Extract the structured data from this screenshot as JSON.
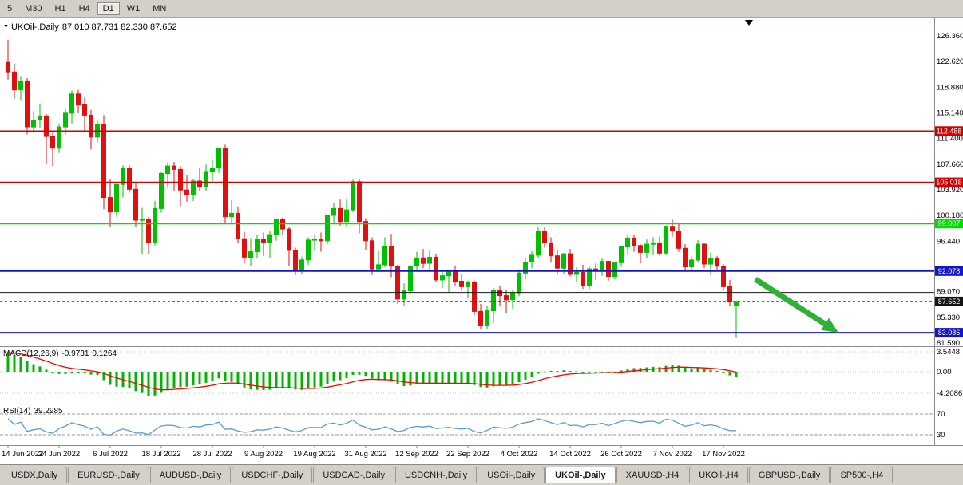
{
  "toolbar": {
    "periods": [
      {
        "label": "5",
        "active": false
      },
      {
        "label": "M30",
        "active": false
      },
      {
        "label": "H1",
        "active": false
      },
      {
        "label": "H4",
        "active": false
      },
      {
        "label": "D1",
        "active": true
      },
      {
        "label": "W1",
        "active": false
      },
      {
        "label": "MN",
        "active": false
      }
    ]
  },
  "chart": {
    "symbol_title": "UKOil-,Daily",
    "ohlc_text": "87.010 87.731 82.330 87.652",
    "price_axis_labels": [
      "126.360",
      "122.620",
      "118.880",
      "115.140",
      "111.400",
      "107.660",
      "103.920",
      "100.180",
      "96.440",
      "89.070",
      "85.330",
      "81.590"
    ],
    "hlines": [
      {
        "price": 112.488,
        "color": "#d20000",
        "label": "112.488",
        "width": 1.6
      },
      {
        "price": 105.015,
        "color": "#d20000",
        "label": "105.015",
        "width": 1.6
      },
      {
        "price": 99.007,
        "color": "#00dd00",
        "label": "99.007",
        "width": 2
      },
      {
        "price": 92.078,
        "color": "#1414c8",
        "label": "92.078",
        "width": 2
      },
      {
        "price": 83.086,
        "color": "#1414c8",
        "label": "83.086",
        "width": 2
      },
      {
        "price": 88.96,
        "color": "#141414",
        "label": null,
        "width": 1
      }
    ],
    "current_price": {
      "value": 87.652,
      "label": "87.652",
      "color": "#141414"
    },
    "annotation_arrow": {
      "color": "#2eb135",
      "from_index": 117,
      "from_price": 90.9,
      "to_index": 130,
      "to_price": 83.1
    },
    "chart_shift_marker_index": 116,
    "colors": {
      "candle_up": "#00c000",
      "candle_down": "#e01010",
      "background": "#ffffff"
    }
  },
  "indicators": {
    "macd": {
      "name": "MACD(12,26,9)",
      "value_main": "-0.9731",
      "value_signal": "0.1264",
      "axis_labels": [
        "3.5448",
        "0.00",
        "-4.2086"
      ],
      "hist_color": "#00b400",
      "signal_color": "#ff0000"
    },
    "rsi": {
      "name": "RSI(14)",
      "value": "39.2985",
      "axis_labels": [
        "70",
        "30"
      ],
      "levels": [
        70,
        30
      ],
      "line_color": "#5a9bd4"
    }
  },
  "time_axis": {
    "labels": [
      "14 Jun 2022",
      "24 Jun 2022",
      "6 Jul 2022",
      "18 Jul 2022",
      "28 Jul 2022",
      "9 Aug 2022",
      "19 Aug 2022",
      "31 Aug 2022",
      "12 Sep 2022",
      "22 Sep 2022",
      "4 Oct 2022",
      "14 Oct 2022",
      "26 Oct 2022",
      "7 Nov 2022",
      "17 Nov 2022"
    ],
    "indices": [
      0,
      8,
      16,
      24,
      32,
      40,
      48,
      56,
      64,
      72,
      80,
      88,
      96,
      104,
      112
    ]
  },
  "tabs": [
    {
      "label": "USDX,Daily",
      "active": false
    },
    {
      "label": "EURUSD-,Daily",
      "active": false
    },
    {
      "label": "AUDUSD-,Daily",
      "active": false
    },
    {
      "label": "USDCHF-,Daily",
      "active": false
    },
    {
      "label": "USDCAD-,Daily",
      "active": false
    },
    {
      "label": "USDCNH-,Daily",
      "active": false
    },
    {
      "label": "USOil-,Daily",
      "active": false
    },
    {
      "label": "UKOil-,Daily",
      "active": true
    },
    {
      "label": "XAUUSD-,H4",
      "active": false
    },
    {
      "label": "UKOil-,H4",
      "active": false
    },
    {
      "label": "GBPUSD-,Daily",
      "active": false
    },
    {
      "label": "SP500-,H4",
      "active": false
    }
  ],
  "chart_data": {
    "type": "candlestick",
    "title": "UKOil-,Daily",
    "symbol": "UKOil-",
    "timeframe": "Daily",
    "last_ohlc": {
      "open": 87.01,
      "high": 87.731,
      "low": 82.33,
      "close": 87.652
    },
    "visible_price_range": [
      81.59,
      126.36
    ],
    "candles": [
      [
        122.5,
        125.8,
        120.0,
        121.1
      ],
      [
        121.1,
        122.3,
        117.2,
        118.5
      ],
      [
        118.5,
        120.5,
        117.0,
        119.8
      ],
      [
        119.8,
        120.2,
        112.0,
        113.1
      ],
      [
        113.1,
        115.4,
        112.3,
        114.1
      ],
      [
        114.1,
        116.5,
        113.0,
        114.7
      ],
      [
        114.7,
        115.0,
        107.6,
        111.7
      ],
      [
        111.7,
        112.5,
        107.4,
        110.0
      ],
      [
        110.0,
        113.6,
        109.3,
        113.1
      ],
      [
        113.1,
        115.7,
        112.0,
        115.1
      ],
      [
        115.1,
        118.4,
        113.6,
        117.9
      ],
      [
        117.9,
        118.5,
        115.1,
        116.3
      ],
      [
        116.3,
        117.4,
        112.6,
        114.8
      ],
      [
        114.8,
        115.6,
        109.8,
        111.6
      ],
      [
        111.6,
        114.0,
        110.8,
        113.5
      ],
      [
        113.5,
        114.8,
        101.1,
        102.8
      ],
      [
        102.8,
        105.5,
        98.5,
        100.7
      ],
      [
        100.7,
        105.1,
        100.0,
        104.7
      ],
      [
        104.7,
        107.5,
        102.8,
        107.0
      ],
      [
        107.0,
        107.5,
        103.5,
        104.0
      ],
      [
        104.0,
        104.9,
        98.5,
        99.5
      ],
      [
        99.5,
        101.3,
        94.5,
        99.6
      ],
      [
        99.6,
        100.0,
        94.6,
        96.3
      ],
      [
        96.3,
        102.3,
        95.8,
        101.2
      ],
      [
        101.2,
        106.6,
        100.6,
        106.3
      ],
      [
        106.3,
        107.9,
        104.2,
        107.4
      ],
      [
        107.4,
        108.0,
        103.7,
        106.9
      ],
      [
        106.9,
        107.4,
        101.5,
        103.9
      ],
      [
        103.9,
        106.0,
        102.2,
        103.2
      ],
      [
        103.2,
        105.5,
        102.3,
        105.2
      ],
      [
        105.2,
        107.1,
        103.7,
        104.4
      ],
      [
        104.4,
        107.6,
        103.8,
        106.6
      ],
      [
        106.6,
        108.3,
        105.1,
        107.1
      ],
      [
        107.1,
        110.0,
        106.4,
        110.0
      ],
      [
        110.0,
        110.5,
        99.1,
        100.0
      ],
      [
        100.0,
        102.4,
        98.9,
        100.5
      ],
      [
        100.5,
        101.5,
        96.1,
        96.8
      ],
      [
        96.8,
        97.8,
        93.2,
        94.1
      ],
      [
        94.1,
        96.9,
        92.8,
        94.9
      ],
      [
        94.9,
        97.4,
        93.9,
        96.7
      ],
      [
        96.7,
        97.7,
        94.3,
        96.3
      ],
      [
        96.3,
        97.9,
        94.0,
        97.4
      ],
      [
        97.4,
        99.6,
        96.5,
        99.6
      ],
      [
        99.6,
        99.9,
        97.3,
        98.2
      ],
      [
        98.2,
        98.5,
        92.8,
        95.1
      ],
      [
        95.1,
        95.5,
        91.5,
        92.3
      ],
      [
        92.3,
        94.2,
        91.6,
        93.7
      ],
      [
        93.7,
        97.0,
        93.0,
        96.6
      ],
      [
        96.6,
        97.3,
        95.0,
        96.7
      ],
      [
        96.7,
        97.7,
        94.9,
        96.5
      ],
      [
        96.5,
        100.3,
        96.0,
        100.2
      ],
      [
        100.2,
        102.0,
        99.0,
        101.2
      ],
      [
        101.2,
        102.5,
        98.7,
        99.3
      ],
      [
        99.3,
        102.6,
        98.6,
        101.0
      ],
      [
        101.0,
        105.4,
        100.7,
        105.1
      ],
      [
        105.1,
        105.5,
        97.6,
        99.3
      ],
      [
        99.3,
        99.8,
        95.2,
        96.5
      ],
      [
        96.5,
        97.0,
        91.5,
        92.4
      ],
      [
        92.4,
        95.0,
        91.9,
        93.0
      ],
      [
        93.0,
        97.0,
        92.6,
        95.7
      ],
      [
        95.7,
        97.5,
        91.2,
        92.8
      ],
      [
        92.8,
        93.0,
        87.3,
        88.0
      ],
      [
        88.0,
        90.3,
        87.0,
        89.2
      ],
      [
        89.2,
        93.0,
        88.8,
        92.8
      ],
      [
        92.8,
        94.9,
        92.3,
        94.0
      ],
      [
        94.0,
        95.3,
        92.5,
        93.2
      ],
      [
        93.2,
        95.1,
        92.0,
        94.1
      ],
      [
        94.1,
        94.6,
        90.5,
        90.8
      ],
      [
        90.8,
        92.0,
        89.6,
        91.4
      ],
      [
        91.4,
        92.3,
        89.0,
        92.0
      ],
      [
        92.0,
        92.9,
        90.0,
        90.6
      ],
      [
        90.6,
        91.7,
        89.2,
        89.8
      ],
      [
        89.8,
        90.7,
        88.2,
        90.5
      ],
      [
        90.5,
        90.7,
        85.6,
        86.2
      ],
      [
        86.2,
        87.3,
        83.6,
        84.1
      ],
      [
        84.1,
        87.0,
        83.7,
        86.3
      ],
      [
        86.3,
        89.6,
        84.5,
        89.3
      ],
      [
        89.3,
        90.0,
        86.9,
        88.5
      ],
      [
        88.5,
        89.3,
        86.0,
        87.9
      ],
      [
        87.9,
        89.3,
        86.6,
        88.9
      ],
      [
        88.9,
        92.3,
        88.4,
        91.8
      ],
      [
        91.8,
        94.0,
        90.9,
        93.4
      ],
      [
        93.4,
        95.0,
        92.5,
        94.4
      ],
      [
        94.4,
        98.6,
        94.0,
        97.9
      ],
      [
        97.9,
        98.5,
        95.5,
        96.2
      ],
      [
        96.2,
        97.0,
        93.3,
        94.3
      ],
      [
        94.3,
        95.1,
        91.7,
        92.5
      ],
      [
        92.5,
        94.7,
        91.6,
        94.6
      ],
      [
        94.6,
        95.3,
        91.3,
        91.6
      ],
      [
        91.6,
        92.6,
        90.4,
        91.9
      ],
      [
        91.9,
        93.0,
        89.5,
        90.0
      ],
      [
        90.0,
        92.8,
        89.4,
        92.4
      ],
      [
        92.4,
        93.2,
        90.8,
        92.3
      ],
      [
        92.3,
        93.9,
        91.4,
        93.5
      ],
      [
        93.5,
        93.6,
        90.7,
        91.3
      ],
      [
        91.3,
        93.4,
        90.9,
        93.3
      ],
      [
        93.3,
        95.7,
        92.7,
        95.6
      ],
      [
        95.6,
        97.4,
        94.6,
        96.9
      ],
      [
        96.9,
        97.3,
        94.9,
        95.8
      ],
      [
        95.8,
        96.0,
        93.2,
        94.8
      ],
      [
        94.8,
        96.7,
        94.0,
        96.0
      ],
      [
        96.0,
        97.0,
        94.4,
        96.2
      ],
      [
        96.2,
        97.1,
        94.3,
        94.7
      ],
      [
        94.7,
        98.7,
        94.4,
        98.6
      ],
      [
        98.6,
        99.6,
        97.1,
        97.9
      ],
      [
        97.9,
        99.1,
        94.9,
        95.4
      ],
      [
        95.4,
        96.0,
        92.1,
        92.7
      ],
      [
        92.7,
        94.2,
        92.0,
        93.7
      ],
      [
        93.7,
        96.6,
        93.3,
        96.0
      ],
      [
        96.0,
        96.2,
        92.5,
        93.1
      ],
      [
        93.1,
        94.8,
        91.5,
        93.9
      ],
      [
        93.9,
        94.3,
        92.3,
        92.8
      ],
      [
        92.8,
        93.1,
        89.2,
        89.8
      ],
      [
        89.8,
        90.8,
        86.9,
        87.6
      ],
      [
        87.01,
        87.731,
        82.33,
        87.652
      ]
    ]
  }
}
